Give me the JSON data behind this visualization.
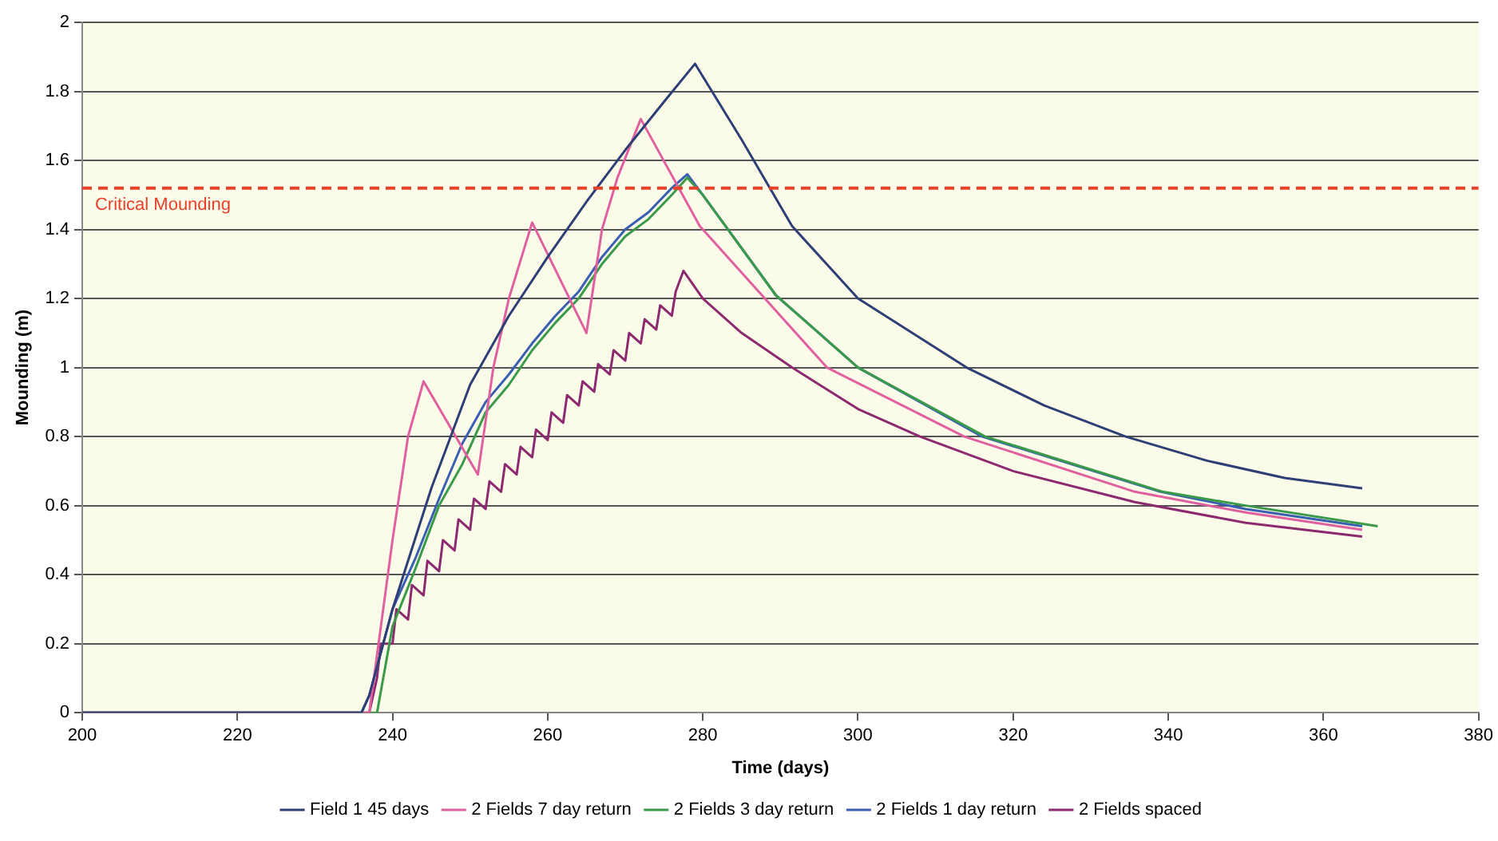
{
  "chart_data": {
    "type": "line",
    "xlabel": "Time (days)",
    "ylabel": "Mounding (m)",
    "xlim": [
      200,
      380
    ],
    "xticks": [
      200,
      220,
      240,
      260,
      280,
      300,
      320,
      340,
      360,
      380
    ],
    "ylim": [
      0,
      2
    ],
    "yticks": [
      0,
      0.2,
      0.4,
      0.6,
      0.8,
      1,
      1.2,
      1.4,
      1.6,
      1.8,
      2
    ],
    "grid": "y",
    "legend": "bottom",
    "marker": "none",
    "line_style": "solid",
    "ref_lines": [
      {
        "axis": "y",
        "value": 1.52,
        "label": "Critical Mounding",
        "color": "#e8402a",
        "line_style": "dashed"
      }
    ],
    "series": [
      {
        "name": "Field 1 45 days",
        "color": "#2e3f75",
        "x": [
          200,
          236,
          237,
          240,
          245,
          250,
          255,
          260,
          265,
          270,
          275,
          279,
          285,
          291.5,
          300,
          314,
          324,
          334.5,
          345,
          355,
          365
        ],
        "values": [
          0,
          0,
          0.05,
          0.3,
          0.65,
          0.95,
          1.15,
          1.32,
          1.48,
          1.63,
          1.77,
          1.88,
          1.66,
          1.41,
          1.2,
          1,
          0.89,
          0.8,
          0.73,
          0.68,
          0.65
        ]
      },
      {
        "name": "2 Fields 7 day return",
        "color": "#e0609f",
        "x": [
          200,
          237,
          240,
          242,
          244,
          251,
          253,
          255,
          258,
          265,
          267,
          269,
          272,
          279.6,
          296,
          313.7,
          335.7,
          350,
          365
        ],
        "values": [
          0,
          0,
          0.5,
          0.8,
          0.96,
          0.69,
          1,
          1.2,
          1.42,
          1.1,
          1.4,
          1.55,
          1.72,
          1.41,
          1,
          0.8,
          0.64,
          0.58,
          0.53
        ]
      },
      {
        "name": "2 Fields 3 day return",
        "color": "#3a9a4a",
        "x": [
          200,
          238,
          240,
          243,
          246,
          249,
          252,
          255,
          258,
          261,
          264,
          267,
          270,
          273,
          276,
          278,
          280,
          289.4,
          300,
          316.4,
          339.3,
          350,
          367
        ],
        "values": [
          0,
          0,
          0.25,
          0.42,
          0.6,
          0.72,
          0.87,
          0.95,
          1.05,
          1.13,
          1.2,
          1.3,
          1.38,
          1.43,
          1.5,
          1.55,
          1.5,
          1.21,
          1,
          0.8,
          0.64,
          0.6,
          0.54
        ]
      },
      {
        "name": "2 Fields 1 day return",
        "color": "#3a5fb0",
        "x": [
          200,
          236,
          237,
          240,
          243,
          246,
          249,
          252,
          255,
          258,
          261,
          264,
          267,
          270,
          273,
          276,
          278,
          280,
          289.4,
          300,
          316,
          339,
          350,
          365
        ],
        "values": [
          0,
          0,
          0.05,
          0.3,
          0.45,
          0.62,
          0.78,
          0.9,
          0.98,
          1.07,
          1.15,
          1.22,
          1.32,
          1.4,
          1.45,
          1.52,
          1.56,
          1.5,
          1.21,
          1,
          0.8,
          0.64,
          0.59,
          0.54
        ]
      },
      {
        "name": "2 Fields spaced",
        "color": "#8b2a6e",
        "x": [
          200,
          237,
          238,
          238.5,
          240,
          240.5,
          242,
          242.5,
          244,
          244.5,
          246,
          246.5,
          248,
          248.5,
          250,
          250.5,
          252,
          252.5,
          254,
          254.5,
          256,
          256.5,
          258,
          258.5,
          260,
          260.5,
          262,
          262.5,
          264,
          264.5,
          266,
          266.5,
          268,
          268.5,
          270,
          270.5,
          272,
          272.5,
          274,
          274.5,
          276,
          276.5,
          277.5,
          280,
          285,
          291.5,
          300,
          308,
          320,
          335.7,
          350,
          365
        ],
        "values": [
          0,
          0,
          0.1,
          0.2,
          0.2,
          0.3,
          0.27,
          0.37,
          0.34,
          0.44,
          0.41,
          0.5,
          0.47,
          0.56,
          0.53,
          0.62,
          0.59,
          0.67,
          0.64,
          0.72,
          0.69,
          0.77,
          0.74,
          0.82,
          0.79,
          0.87,
          0.84,
          0.92,
          0.89,
          0.96,
          0.93,
          1.01,
          0.98,
          1.05,
          1.02,
          1.1,
          1.07,
          1.14,
          1.11,
          1.18,
          1.15,
          1.22,
          1.28,
          1.2,
          1.1,
          1,
          0.88,
          0.8,
          0.7,
          0.61,
          0.55,
          0.51
        ]
      }
    ]
  }
}
